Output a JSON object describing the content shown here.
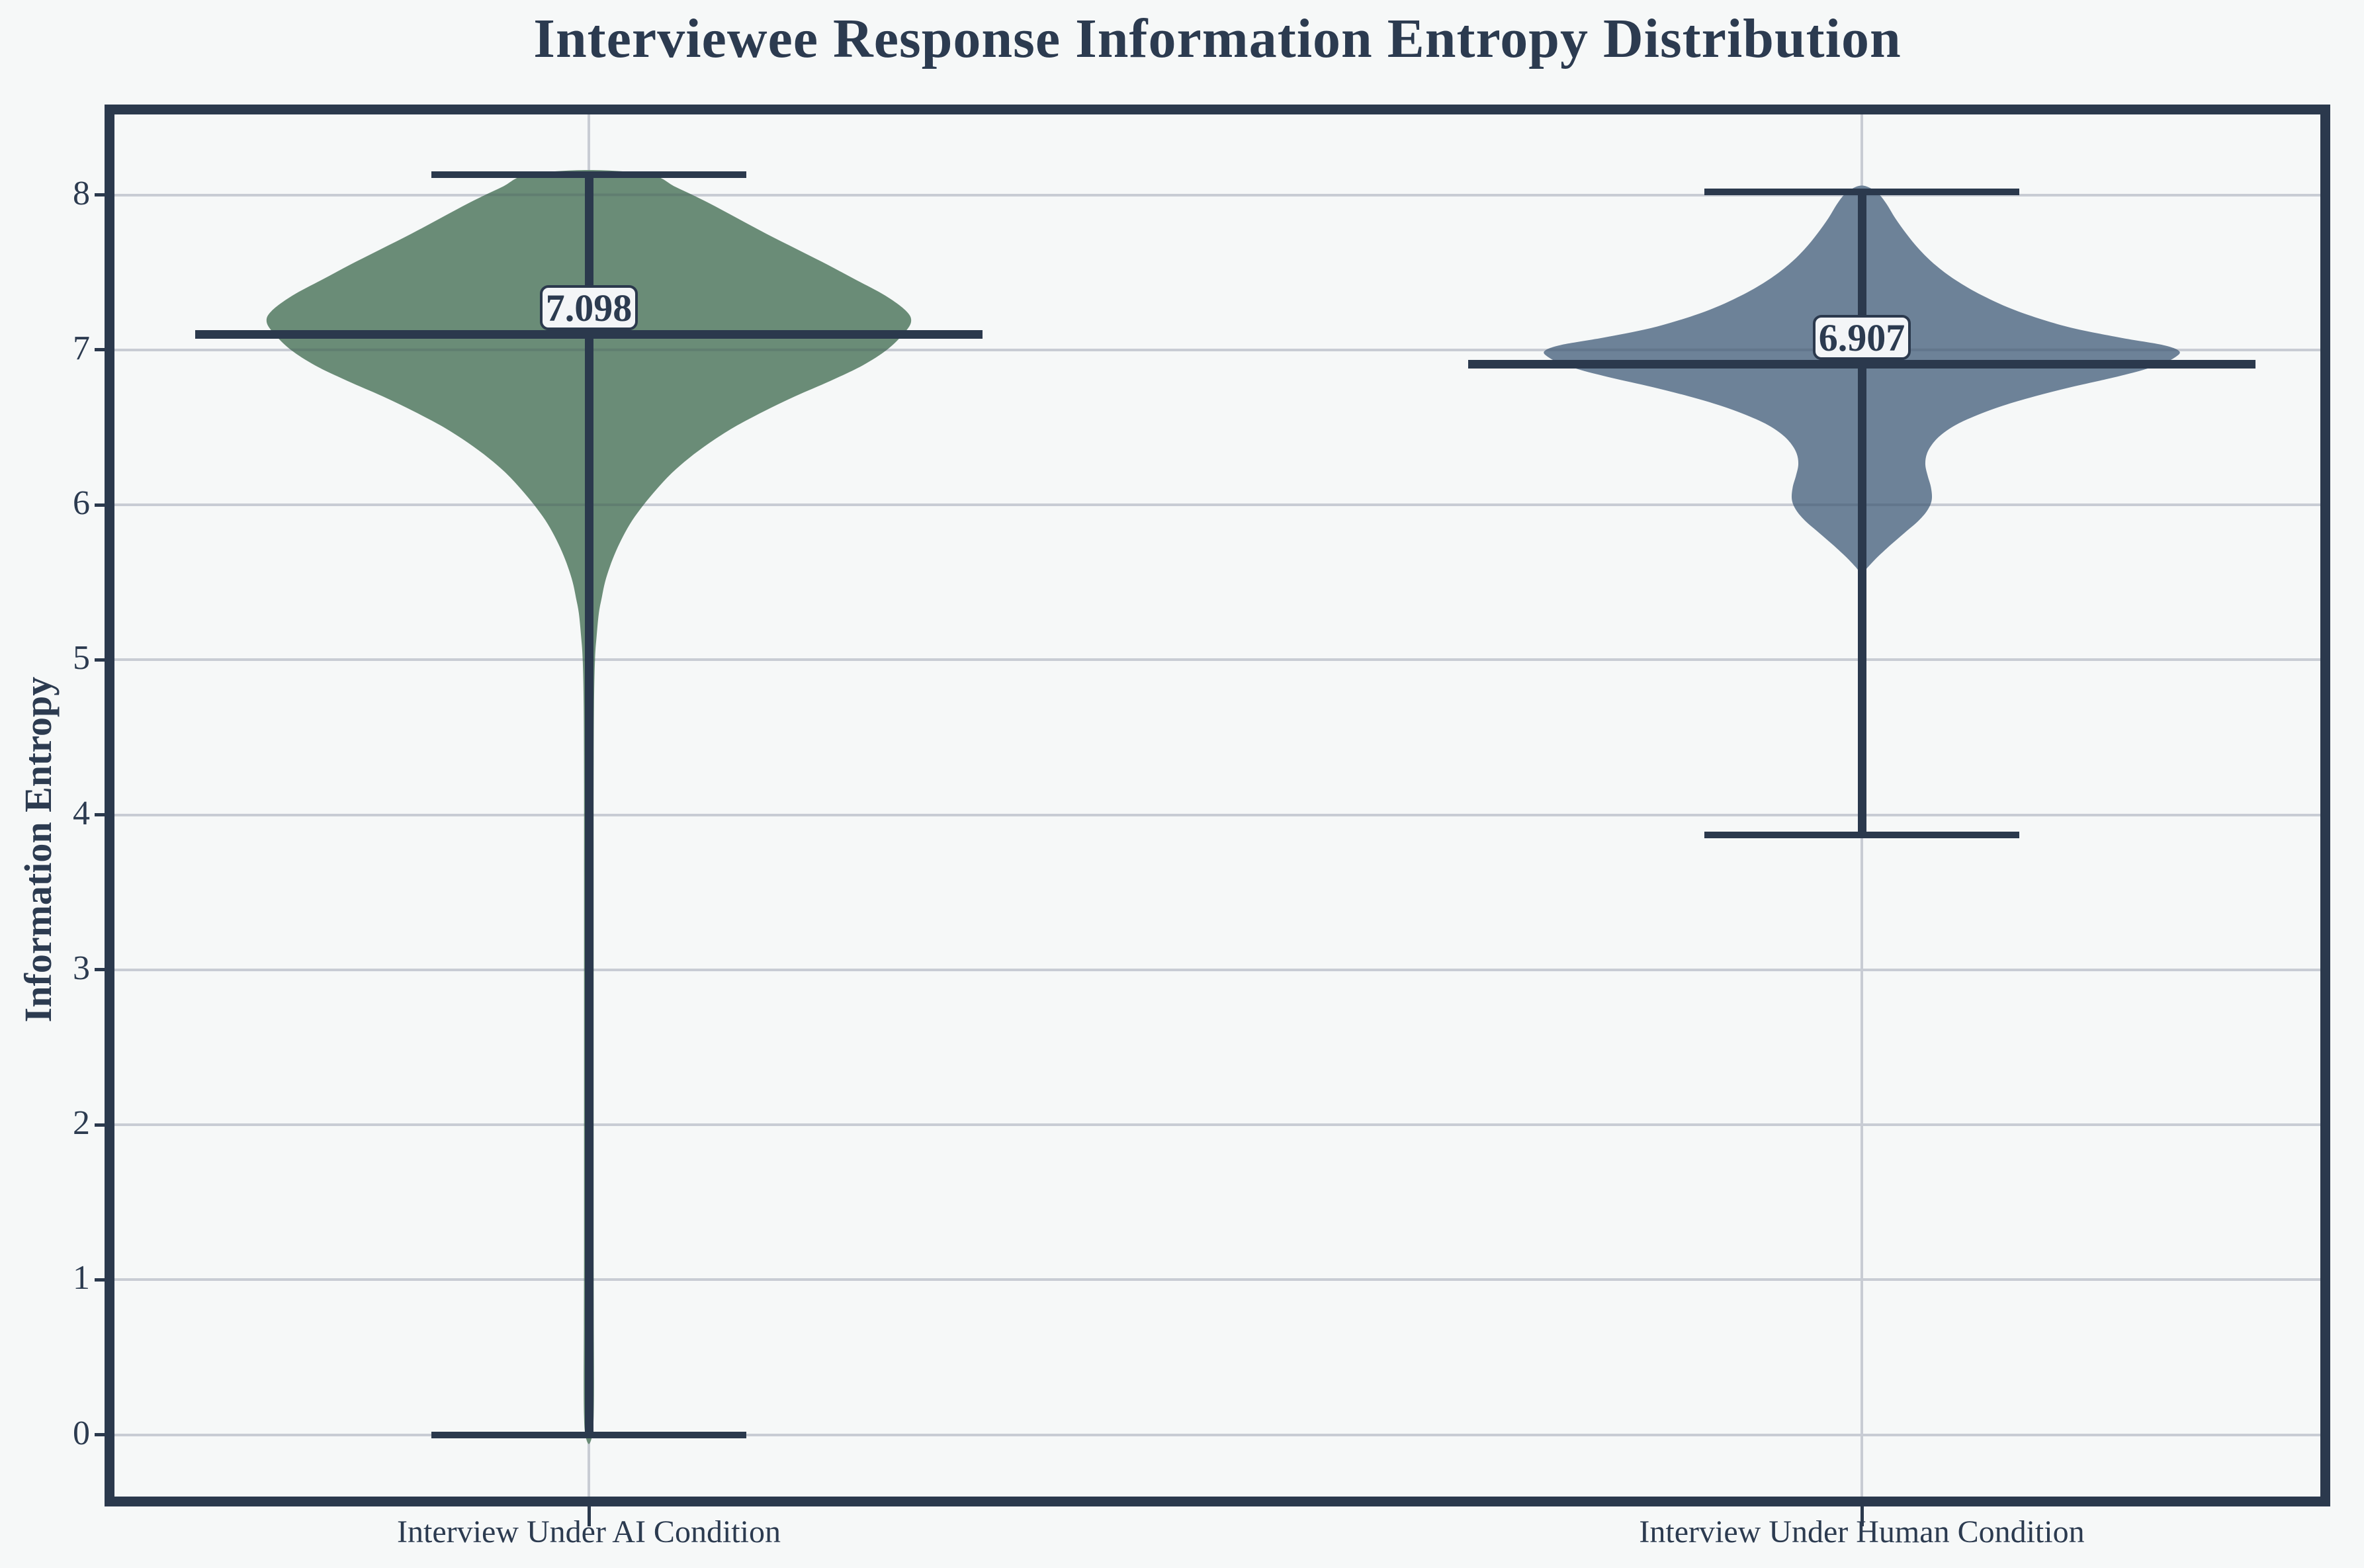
{
  "title": "Interviewee Response Information Entropy Distribution",
  "y_axis": {
    "label": "Information Entropy",
    "tick_labels": [
      "0",
      "1",
      "2",
      "3",
      "4",
      "5",
      "6",
      "7",
      "8"
    ]
  },
  "colors": {
    "background": "#f6f8f8",
    "frame": "#2b394d",
    "grid": "#c8ccd4",
    "text": "#2c3b50",
    "ai_violin": "#6a8c77",
    "human_violin": "#6d8298",
    "label_box_bg": "#f3f5f7"
  },
  "chart_data": {
    "type": "violin",
    "title": "Interviewee Response Information Entropy Distribution",
    "xlabel": "",
    "ylabel": "Information Entropy",
    "grid": true,
    "legend": false,
    "categories": [
      "Interview Under AI Condition",
      "Interview Under Human Condition"
    ],
    "yticks": [
      0,
      1,
      2,
      3,
      4,
      5,
      6,
      7,
      8
    ],
    "ylim": [
      -0.43,
      8.56
    ],
    "series": [
      {
        "name": "Interview Under AI Condition",
        "color": "#6a8c77",
        "mean": 7.098,
        "mean_label": "7.098",
        "whisker_high": 8.13,
        "whisker_low": 0.0,
        "violin_top": 8.16,
        "violin_bottom": -0.06,
        "profile": [
          [
            8.16,
            0
          ],
          [
            8.13,
            0.19
          ],
          [
            8.05,
            0.27
          ],
          [
            7.95,
            0.37
          ],
          [
            7.85,
            0.46
          ],
          [
            7.75,
            0.55
          ],
          [
            7.65,
            0.645
          ],
          [
            7.55,
            0.74
          ],
          [
            7.45,
            0.83
          ],
          [
            7.35,
            0.92
          ],
          [
            7.25,
            0.985
          ],
          [
            7.18,
            1.0
          ],
          [
            7.1,
            0.975
          ],
          [
            7.0,
            0.925
          ],
          [
            6.9,
            0.85
          ],
          [
            6.8,
            0.75
          ],
          [
            6.7,
            0.64
          ],
          [
            6.6,
            0.54
          ],
          [
            6.5,
            0.45
          ],
          [
            6.4,
            0.375
          ],
          [
            6.3,
            0.31
          ],
          [
            6.2,
            0.255
          ],
          [
            6.1,
            0.21
          ],
          [
            6.0,
            0.17
          ],
          [
            5.9,
            0.135
          ],
          [
            5.8,
            0.107
          ],
          [
            5.7,
            0.084
          ],
          [
            5.6,
            0.065
          ],
          [
            5.5,
            0.05
          ],
          [
            5.4,
            0.04
          ],
          [
            5.3,
            0.031
          ],
          [
            5.15,
            0.024
          ],
          [
            5.0,
            0.019
          ],
          [
            4.7,
            0.016
          ],
          [
            4.2,
            0.015
          ],
          [
            3.6,
            0.015
          ],
          [
            3.0,
            0.015
          ],
          [
            2.4,
            0.015
          ],
          [
            1.8,
            0.015
          ],
          [
            1.2,
            0.015
          ],
          [
            0.7,
            0.0155
          ],
          [
            0.35,
            0.016
          ],
          [
            0.12,
            0.015
          ],
          [
            0.0,
            0.011
          ],
          [
            -0.06,
            0
          ]
        ]
      },
      {
        "name": "Interview Under Human Condition",
        "color": "#6d8298",
        "mean": 6.907,
        "mean_label": "6.907",
        "whisker_high": 8.02,
        "whisker_low": 3.87,
        "violin_top": 8.06,
        "violin_bottom": 5.56,
        "profile": [
          [
            8.06,
            0
          ],
          [
            8.02,
            0.045
          ],
          [
            7.95,
            0.075
          ],
          [
            7.85,
            0.105
          ],
          [
            7.75,
            0.14
          ],
          [
            7.65,
            0.18
          ],
          [
            7.55,
            0.23
          ],
          [
            7.45,
            0.295
          ],
          [
            7.35,
            0.38
          ],
          [
            7.25,
            0.49
          ],
          [
            7.15,
            0.645
          ],
          [
            7.08,
            0.81
          ],
          [
            7.03,
            0.95
          ],
          [
            6.99,
            1.0
          ],
          [
            6.95,
            0.985
          ],
          [
            6.91,
            0.945
          ],
          [
            6.87,
            0.885
          ],
          [
            6.82,
            0.79
          ],
          [
            6.76,
            0.66
          ],
          [
            6.7,
            0.545
          ],
          [
            6.64,
            0.445
          ],
          [
            6.58,
            0.365
          ],
          [
            6.52,
            0.3
          ],
          [
            6.46,
            0.255
          ],
          [
            6.4,
            0.225
          ],
          [
            6.33,
            0.205
          ],
          [
            6.26,
            0.2
          ],
          [
            6.19,
            0.207
          ],
          [
            6.11,
            0.218
          ],
          [
            6.03,
            0.22
          ],
          [
            5.96,
            0.205
          ],
          [
            5.89,
            0.175
          ],
          [
            5.82,
            0.135
          ],
          [
            5.74,
            0.09
          ],
          [
            5.66,
            0.048
          ],
          [
            5.6,
            0.02
          ],
          [
            5.56,
            0
          ]
        ]
      }
    ]
  }
}
